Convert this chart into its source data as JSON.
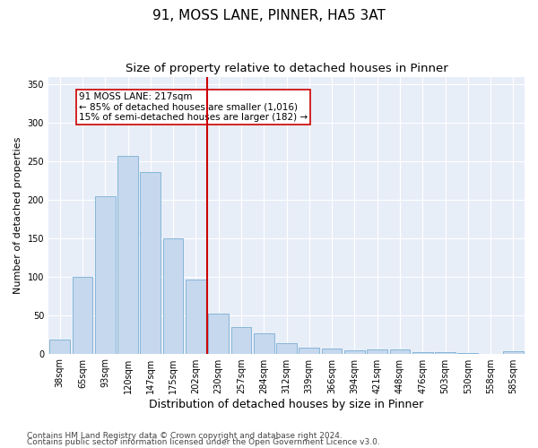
{
  "title1": "91, MOSS LANE, PINNER, HA5 3AT",
  "title2": "Size of property relative to detached houses in Pinner",
  "xlabel": "Distribution of detached houses by size in Pinner",
  "ylabel": "Number of detached properties",
  "footnote1": "Contains HM Land Registry data © Crown copyright and database right 2024.",
  "footnote2": "Contains public sector information licensed under the Open Government Licence v3.0.",
  "bar_labels": [
    "38sqm",
    "65sqm",
    "93sqm",
    "120sqm",
    "147sqm",
    "175sqm",
    "202sqm",
    "230sqm",
    "257sqm",
    "284sqm",
    "312sqm",
    "339sqm",
    "366sqm",
    "394sqm",
    "421sqm",
    "448sqm",
    "476sqm",
    "503sqm",
    "530sqm",
    "558sqm",
    "585sqm"
  ],
  "bar_values": [
    18,
    100,
    204,
    257,
    236,
    150,
    96,
    52,
    35,
    26,
    14,
    8,
    6,
    4,
    5,
    5,
    2,
    2,
    1,
    0,
    3
  ],
  "bar_color": "#c5d8ed",
  "bar_edge_color": "#7aafd4",
  "background_color": "#e8eef8",
  "grid_color": "#ffffff",
  "vline_x_index": 6.5,
  "vline_color": "#cc0000",
  "annotation_text": "91 MOSS LANE: 217sqm\n← 85% of detached houses are smaller (1,016)\n15% of semi-detached houses are larger (182) →",
  "annotation_box_color": "white",
  "annotation_box_edge": "#cc0000",
  "ylim": [
    0,
    360
  ],
  "yticks": [
    0,
    50,
    100,
    150,
    200,
    250,
    300,
    350
  ],
  "title1_fontsize": 11,
  "title2_fontsize": 9.5,
  "xlabel_fontsize": 9,
  "ylabel_fontsize": 8,
  "tick_fontsize": 7,
  "annotation_fontsize": 7.5,
  "footnote_fontsize": 6.5
}
